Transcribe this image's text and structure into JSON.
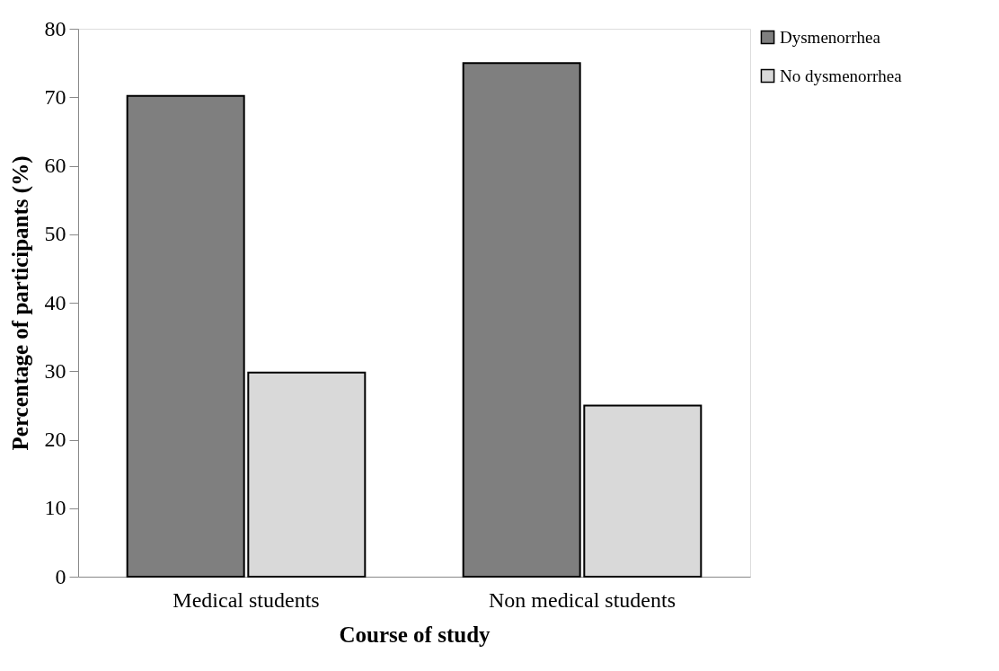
{
  "chart_data": {
    "type": "bar",
    "categories": [
      "Medical students",
      "Non medical students"
    ],
    "series": [
      {
        "name": "Dysmenorrhea",
        "color": "#7f7f7f",
        "values": [
          70.2,
          75
        ]
      },
      {
        "name": "No dysmenorrhea",
        "color": "#d9d9d9",
        "values": [
          29.8,
          25
        ]
      }
    ],
    "xlabel": "Course of study",
    "ylabel": "Percentage of participants (%)",
    "ylim": [
      0,
      80
    ],
    "yticks": [
      0,
      10,
      20,
      30,
      40,
      50,
      60,
      70,
      80
    ],
    "grid": false,
    "legend": "top right"
  }
}
